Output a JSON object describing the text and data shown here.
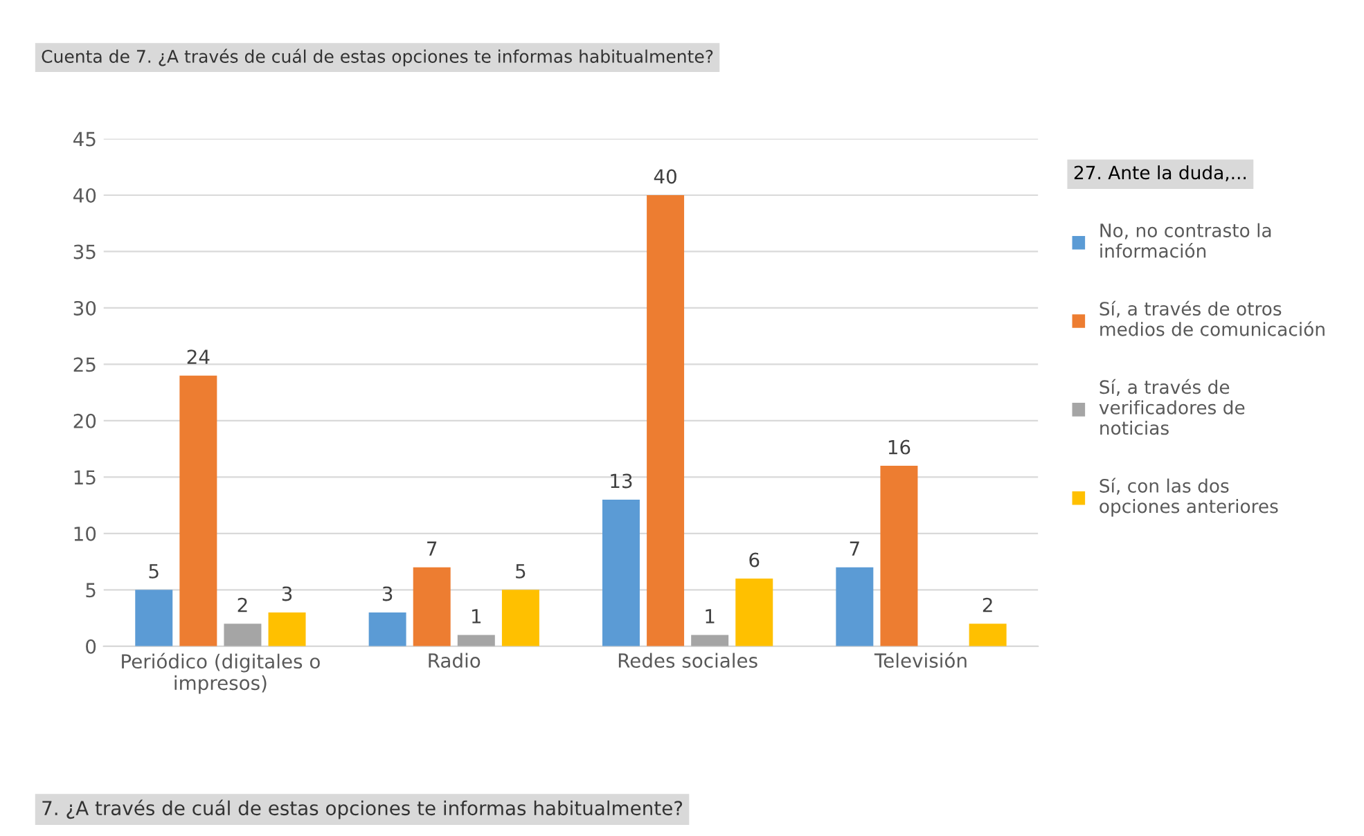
{
  "chart_data": {
    "type": "bar",
    "title": "Cuenta de 7. ¿A través de cuál de estas opciones te informas habitualmente?",
    "annotations": [
      "7. ¿A través de cuál de estas opciones te informas habitualmente?"
    ],
    "legend_title": "27. Ante la duda,...",
    "categories": [
      "Periódico (digitales o impresos)",
      "Radio",
      "Redes sociales",
      "Televisión"
    ],
    "series": [
      {
        "name": "No, no contrasto la información",
        "color": "#5b9bd5",
        "values": [
          5,
          3,
          13,
          7
        ]
      },
      {
        "name": "Sí, a través de otros medios de comunicación",
        "color": "#ed7d31",
        "values": [
          24,
          7,
          40,
          16
        ]
      },
      {
        "name": "Sí, a través de verificadores de noticias",
        "color": "#a5a5a5",
        "values": [
          2,
          1,
          1,
          null
        ]
      },
      {
        "name": "Sí, con las dos opciones anteriores",
        "color": "#ffc000",
        "values": [
          3,
          5,
          6,
          2
        ]
      }
    ],
    "ylim": [
      0,
      45
    ],
    "yticks": [
      0,
      5,
      10,
      15,
      20,
      25,
      30,
      35,
      40,
      45
    ],
    "grid": "y",
    "legend": "right",
    "data_labels": true
  }
}
